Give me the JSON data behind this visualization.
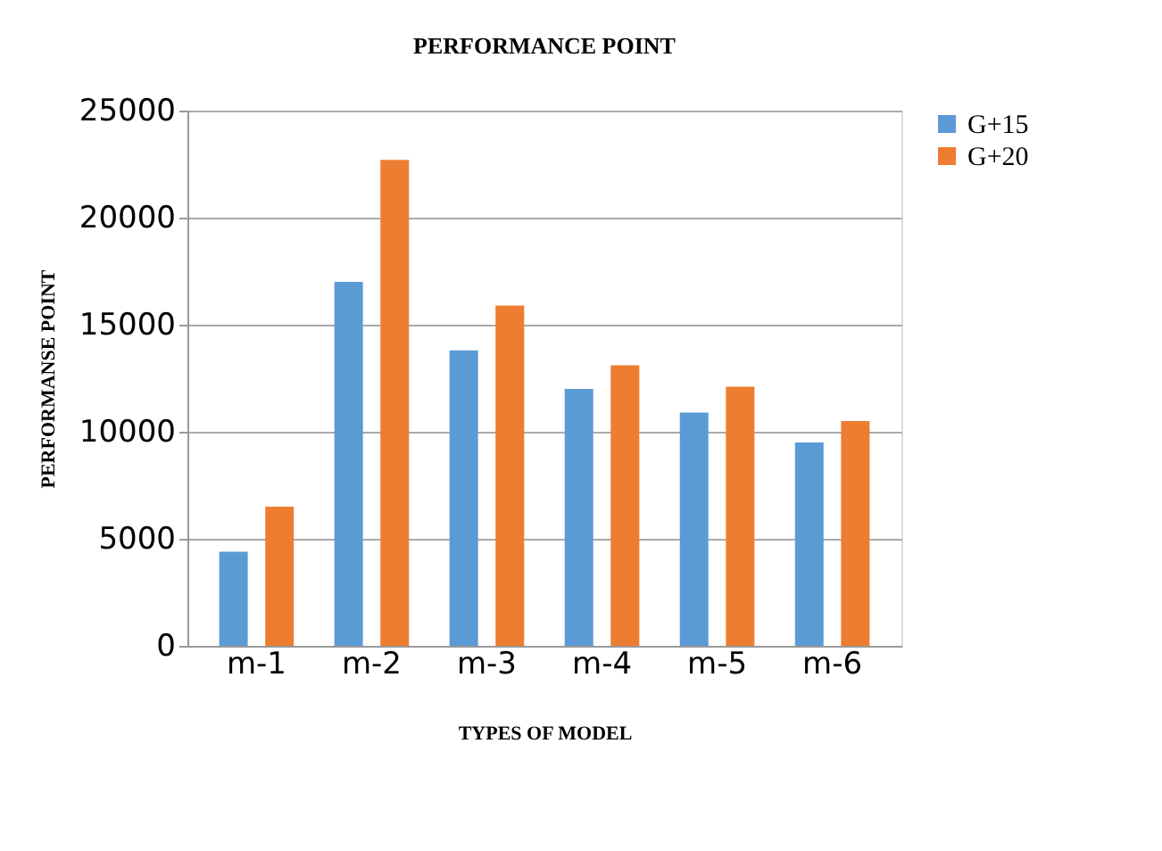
{
  "chart_data": {
    "type": "bar",
    "title": "PERFORMANCE POINT",
    "xlabel": "TYPES OF MODEL",
    "ylabel": "PERFORMANSE POINT",
    "categories": [
      "m-1",
      "m-2",
      "m-3",
      "m-4",
      "m-5",
      "m-6"
    ],
    "series": [
      {
        "name": "G+15",
        "color": "#5b9bd5",
        "values": [
          4400,
          17000,
          13800,
          12000,
          10900,
          9500
        ]
      },
      {
        "name": "G+20",
        "color": "#ed7d31",
        "values": [
          6500,
          22700,
          15900,
          13100,
          12100,
          10500
        ]
      }
    ],
    "ylim": [
      0,
      25000
    ],
    "yticks": [
      0,
      5000,
      10000,
      15000,
      20000,
      25000
    ],
    "grid": "y",
    "legend": "right"
  }
}
